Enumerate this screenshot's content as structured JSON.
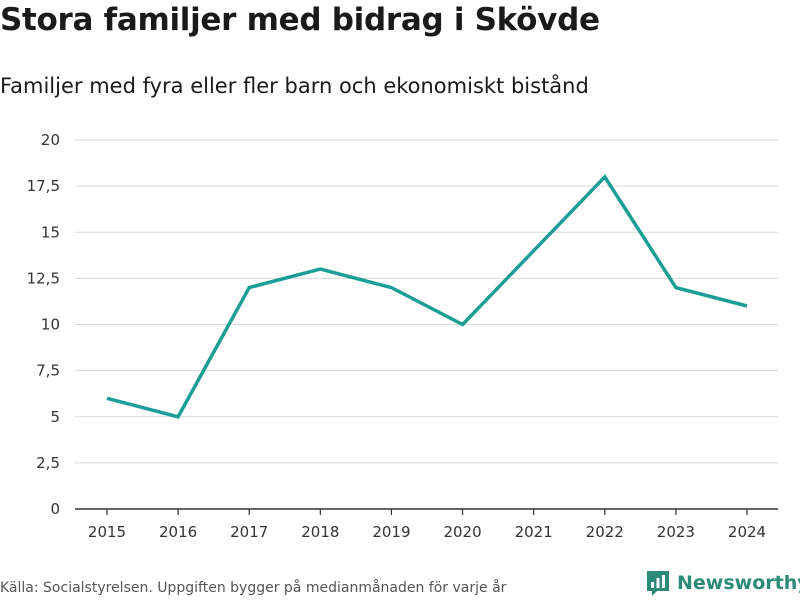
{
  "title": "Stora familjer med bidrag i Skövde",
  "subtitle": "Familjer med fyra eller fler barn och ekonomiskt bistånd",
  "footer": {
    "source": "Källa: Socialstyrelsen. Uppgiften bygger på medianmånaden för varje år",
    "brand": "Newsworthy"
  },
  "colors": {
    "line": "#1a9e96",
    "grid": "#d9d9d9",
    "brand": "#2b8a78"
  },
  "chart_data": {
    "type": "line",
    "categories": [
      "2015",
      "2016",
      "2017",
      "2018",
      "2019",
      "2020",
      "2021",
      "2022",
      "2023",
      "2024"
    ],
    "series": [
      {
        "name": "Familjer",
        "values": [
          6,
          5,
          12,
          13,
          12,
          10,
          14,
          18,
          12,
          11
        ]
      }
    ],
    "yticks": [
      0,
      2.5,
      5,
      7.5,
      10,
      12.5,
      15,
      17.5,
      20
    ],
    "ytick_labels": [
      "0",
      "2,5",
      "5",
      "7,5",
      "10",
      "12,5",
      "15",
      "17,5",
      "20"
    ],
    "ylim": [
      0,
      20
    ],
    "xlabel": "",
    "ylabel": "",
    "grid": true
  }
}
